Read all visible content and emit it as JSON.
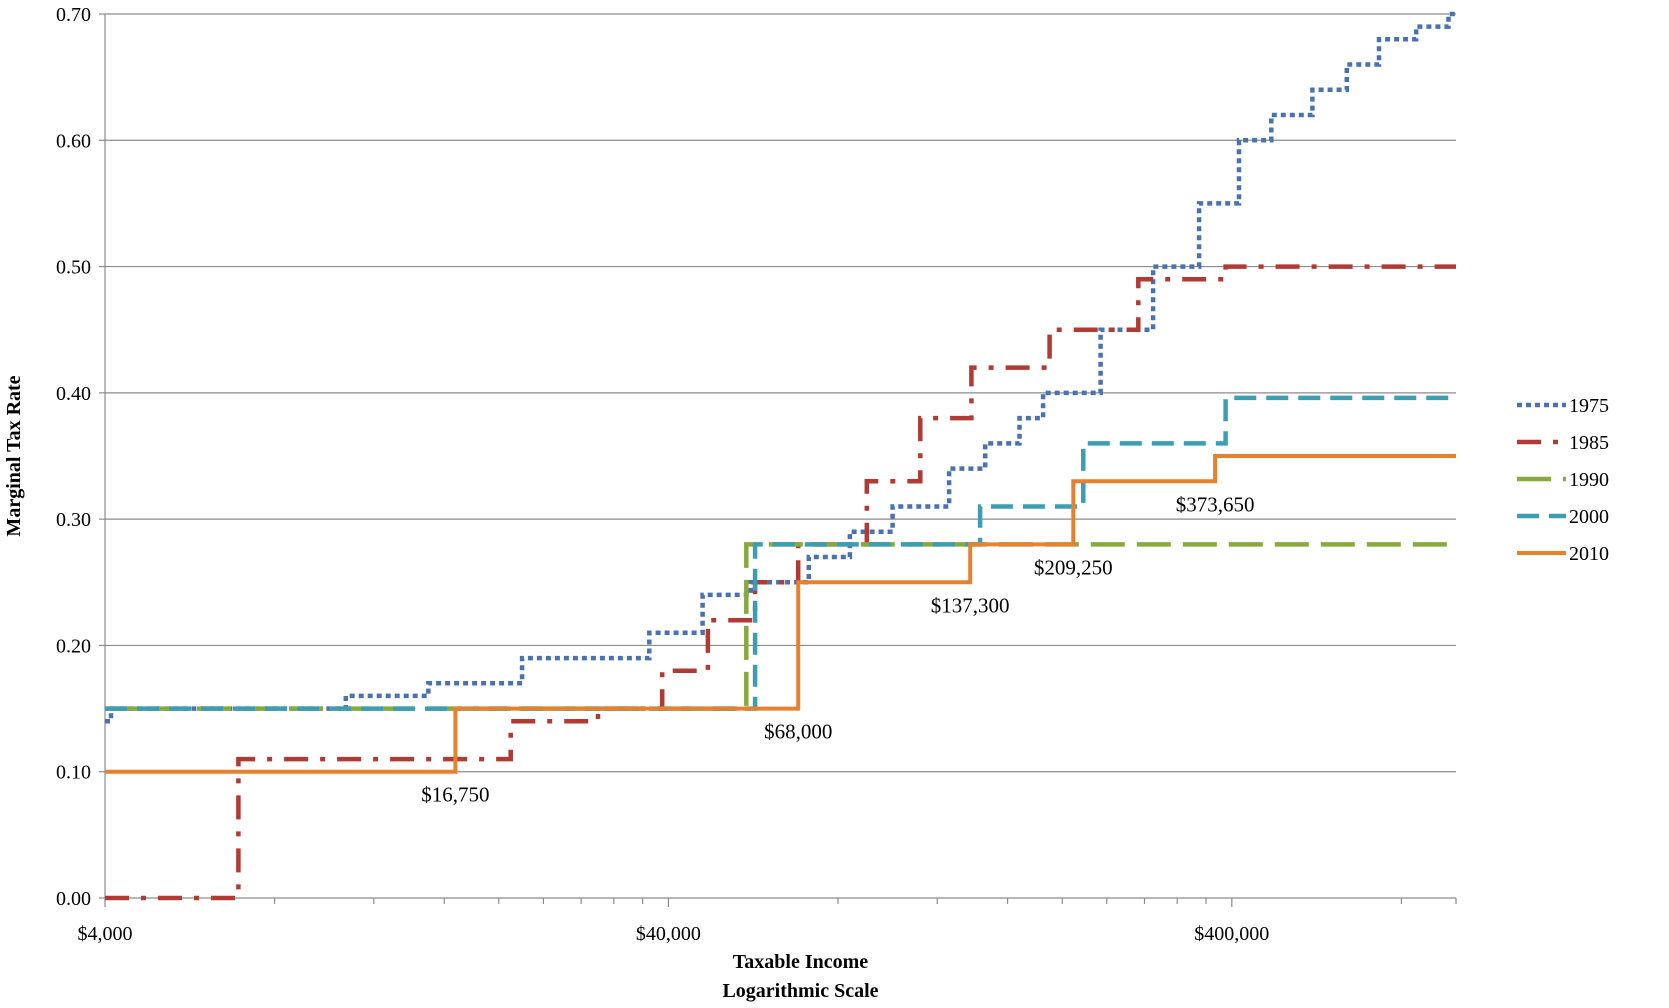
{
  "chart_data": {
    "type": "line",
    "step": true,
    "xlabel": "Taxable Income",
    "xlabel_line2": "Logarithmic Scale",
    "ylabel": "Marginal Tax Rate",
    "x_scale": "log",
    "xlim": [
      4000,
      1000000
    ],
    "ylim": [
      0,
      0.7
    ],
    "x_ticks": [
      {
        "value": 4000,
        "label": "$4,000"
      },
      {
        "value": 40000,
        "label": "$40,000"
      },
      {
        "value": 400000,
        "label": "$400,000"
      }
    ],
    "y_ticks": [
      {
        "value": 0.0,
        "label": "0.00"
      },
      {
        "value": 0.1,
        "label": "0.10"
      },
      {
        "value": 0.2,
        "label": "0.20"
      },
      {
        "value": 0.3,
        "label": "0.30"
      },
      {
        "value": 0.4,
        "label": "0.40"
      },
      {
        "value": 0.5,
        "label": "0.50"
      },
      {
        "value": 0.6,
        "label": "0.60"
      },
      {
        "value": 0.7,
        "label": "0.70"
      }
    ],
    "grid": "horizontal",
    "legend_position": "right",
    "series": [
      {
        "name": "1975",
        "color": "#4a72b0",
        "dash": "dotted",
        "steps": [
          [
            4000,
            0.14
          ],
          [
            4100,
            0.15
          ],
          [
            10700,
            0.16
          ],
          [
            15000,
            0.17
          ],
          [
            22000,
            0.19
          ],
          [
            37000,
            0.21
          ],
          [
            46000,
            0.24
          ],
          [
            56000,
            0.25
          ],
          [
            71000,
            0.27
          ],
          [
            84000,
            0.29
          ],
          [
            100000,
            0.31
          ],
          [
            126000,
            0.34
          ],
          [
            146000,
            0.36
          ],
          [
            168000,
            0.38
          ],
          [
            185000,
            0.4
          ],
          [
            234000,
            0.45
          ],
          [
            290000,
            0.5
          ],
          [
            350000,
            0.55
          ],
          [
            412000,
            0.6
          ],
          [
            470000,
            0.62
          ],
          [
            556000,
            0.64
          ],
          [
            640000,
            0.66
          ],
          [
            730000,
            0.68
          ],
          [
            850000,
            0.69
          ],
          [
            970000,
            0.7
          ],
          [
            1000000,
            0.7
          ]
        ]
      },
      {
        "name": "1985",
        "color": "#b23a34",
        "dash": "dash-dot",
        "steps": [
          [
            4000,
            0.0
          ],
          [
            6900,
            0.11
          ],
          [
            21000,
            0.14
          ],
          [
            30000,
            0.15
          ],
          [
            39000,
            0.18
          ],
          [
            47000,
            0.22
          ],
          [
            57000,
            0.25
          ],
          [
            68000,
            0.28
          ],
          [
            90000,
            0.33
          ],
          [
            112000,
            0.38
          ],
          [
            138000,
            0.42
          ],
          [
            190000,
            0.45
          ],
          [
            273000,
            0.49
          ],
          [
            330000,
            0.49
          ],
          [
            390000,
            0.5
          ],
          [
            1000000,
            0.5
          ]
        ]
      },
      {
        "name": "1990",
        "color": "#88a93d",
        "dash": "dashed",
        "steps": [
          [
            4000,
            0.15
          ],
          [
            55000,
            0.28
          ],
          [
            1000000,
            0.28
          ]
        ]
      },
      {
        "name": "2000",
        "color": "#3c9db3",
        "dash": "dashed",
        "steps": [
          [
            4000,
            0.15
          ],
          [
            57000,
            0.28
          ],
          [
            143000,
            0.31
          ],
          [
            218000,
            0.36
          ],
          [
            390000,
            0.396
          ],
          [
            1000000,
            0.396
          ]
        ]
      },
      {
        "name": "2010",
        "color": "#e8812e",
        "dash": "solid",
        "steps": [
          [
            4000,
            0.1
          ],
          [
            16750,
            0.15
          ],
          [
            68000,
            0.25
          ],
          [
            137300,
            0.28
          ],
          [
            209250,
            0.33
          ],
          [
            373650,
            0.35
          ],
          [
            1000000,
            0.35
          ]
        ]
      }
    ],
    "annotations": [
      {
        "text": "$16,750",
        "x": 16750,
        "y": 0.1
      },
      {
        "text": "$68,000",
        "x": 68000,
        "y": 0.15
      },
      {
        "text": "$137,300",
        "x": 137300,
        "y": 0.25
      },
      {
        "text": "$209,250",
        "x": 209250,
        "y": 0.28
      },
      {
        "text": "$373,650",
        "x": 373650,
        "y": 0.33
      }
    ]
  }
}
